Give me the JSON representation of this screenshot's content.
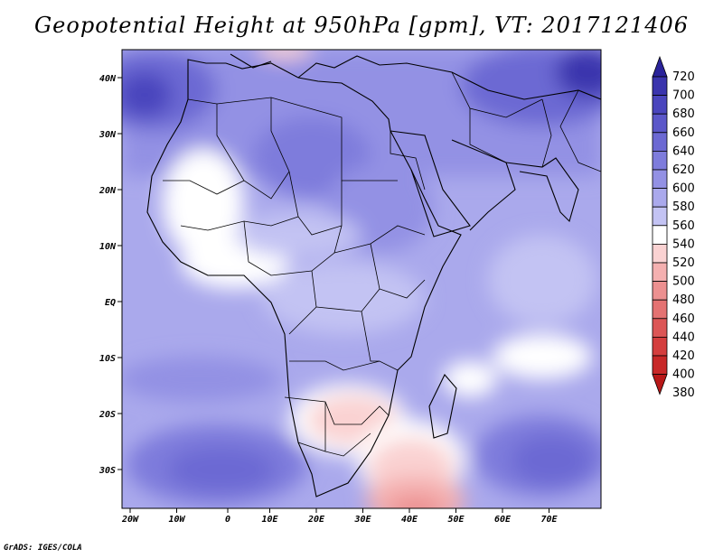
{
  "title": "Geopotential Height at 950hPa [gpm], VT: 2017121406",
  "credit": "GrADS: IGES/COLA",
  "map": {
    "lon_labels": [
      "20W",
      "10W",
      "0",
      "10E",
      "20E",
      "30E",
      "40E",
      "50E",
      "60E",
      "70E"
    ],
    "lat_labels": [
      "40N",
      "30N",
      "20N",
      "10N",
      "EQ",
      "10S",
      "20S",
      "30S"
    ]
  },
  "colorbar": {
    "labels": [
      "720",
      "700",
      "680",
      "660",
      "640",
      "620",
      "600",
      "580",
      "560",
      "540",
      "520",
      "500",
      "480",
      "460",
      "440",
      "420",
      "400",
      "380"
    ],
    "colors": [
      "#2a239a",
      "#3a34ad",
      "#4a45bd",
      "#5b57c9",
      "#6c69d3",
      "#7e7cdc",
      "#9391e4",
      "#aaa9ec",
      "#c3c3f3",
      "#ffffff",
      "#fad2d2",
      "#f4b0b0",
      "#ec9090",
      "#e47272",
      "#dc5656",
      "#d43e3e",
      "#c82828",
      "#b81818"
    ]
  }
}
